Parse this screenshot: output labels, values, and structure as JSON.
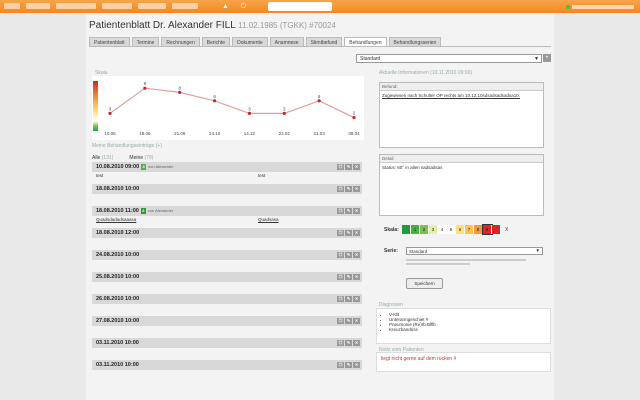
{
  "patient": {
    "title": "Patientenblatt Dr. Alexander FILL",
    "meta": "11.02.1985 (TGKK) #70024"
  },
  "tabs": [
    {
      "label": "Patientenblatt"
    },
    {
      "label": "Termine"
    },
    {
      "label": "Rechnungen"
    },
    {
      "label": "Berichte"
    },
    {
      "label": "Dokumente"
    },
    {
      "label": "Anamnese"
    },
    {
      "label": "Stimtbefund"
    },
    {
      "label": "Behandlungen"
    },
    {
      "label": "Behandlungsserien"
    }
  ],
  "toolbar": {
    "series_select": "Standard",
    "add_label": "+"
  },
  "chart_data": {
    "type": "line",
    "title": "Skala",
    "x": [
      "10.06",
      "18.06",
      "21.06",
      "24.10",
      "14.12",
      "22.02",
      "21.03",
      "08.04"
    ],
    "values": [
      3,
      9,
      8,
      6,
      3,
      3,
      6,
      2
    ],
    "ylim": [
      0,
      10
    ],
    "colors": {
      "line": "#e0a0a0",
      "point": "#c0282d"
    }
  },
  "list": {
    "heading": "Meine Behandlungseinträge (+)",
    "filter_all": "Alle",
    "filter_all_count": "(131)",
    "filter_mine": "Meine",
    "filter_mine_count": "(79)",
    "entries": [
      {
        "date": "10.08.2010 09:00",
        "sev": "3",
        "sev_color": "#5a5",
        "author": "von Alexander",
        "left": "test",
        "right": "test"
      },
      {
        "date": "18.08.2010 10:00",
        "sev": "",
        "sev_color": "",
        "author": "",
        "left": "",
        "right": ""
      },
      {
        "date": "18.08.2010 11:00",
        "sev": "2",
        "sev_color": "#393",
        "author": "von Alexander",
        "left": "Quadsdadadsaaasa",
        "right": "Quadsasa"
      },
      {
        "date": "18.08.2010 12:00",
        "sev": "",
        "sev_color": "",
        "author": "",
        "left": "",
        "right": ""
      },
      {
        "date": "24.08.2010 10:00",
        "sev": "",
        "sev_color": "",
        "author": "",
        "left": "",
        "right": ""
      },
      {
        "date": "25.08.2010 10:00",
        "sev": "",
        "sev_color": "",
        "author": "",
        "left": "",
        "right": ""
      },
      {
        "date": "26.08.2010 10:00",
        "sev": "",
        "sev_color": "",
        "author": "",
        "left": "",
        "right": ""
      },
      {
        "date": "27.08.2010 10:00",
        "sev": "",
        "sev_color": "",
        "author": "",
        "left": "",
        "right": ""
      },
      {
        "date": "03.11.2010 10:00",
        "sev": "",
        "sev_color": "",
        "author": "",
        "left": "",
        "right": ""
      },
      {
        "date": "03.11.2010 10:00",
        "sev": "",
        "sev_color": "",
        "author": "",
        "left": "",
        "right": ""
      }
    ]
  },
  "right": {
    "heading": "Aktuelle Informationen (10.11.2010 09:00)",
    "befund_label": "Befund:",
    "befund_text": "Zugewiesen nach Schulter OP rechts am 10.12.10sdsadsadsadsa10.",
    "detail_label": "Detail",
    "detail_text": "Status: 60° in allen sadsadsas",
    "scale_label": "Skala:",
    "scale_cells": [
      {
        "n": "",
        "c": "#1e9e3a"
      },
      {
        "n": "1",
        "c": "#49b042"
      },
      {
        "n": "2",
        "c": "#7cc24a"
      },
      {
        "n": "3",
        "c": "#e6f0a0"
      },
      {
        "n": "4",
        "c": "#ffffff"
      },
      {
        "n": "5",
        "c": "#ffffff"
      },
      {
        "n": "6",
        "c": "#ffe080"
      },
      {
        "n": "7",
        "c": "#ffc24a"
      },
      {
        "n": "8",
        "c": "#f59a3a"
      },
      {
        "n": "9",
        "c": "#e0242a"
      },
      {
        "n": "",
        "c": "#d8232a"
      }
    ],
    "scale_clear": "X",
    "serie_label": "Serie:",
    "serie_value": "Standard",
    "save_label": "Speichern",
    "diag_heading": "Diagnosen",
    "diagnoses": [
      "V-KB",
      "Unterarmgeschiet #",
      "Pneumonie (Re)rb.Blflb",
      "Kreuzbandriss"
    ],
    "notes_heading": "Notiz vom Patienten",
    "notes_text": "liegt nicht gerne auf dem rücken #"
  }
}
